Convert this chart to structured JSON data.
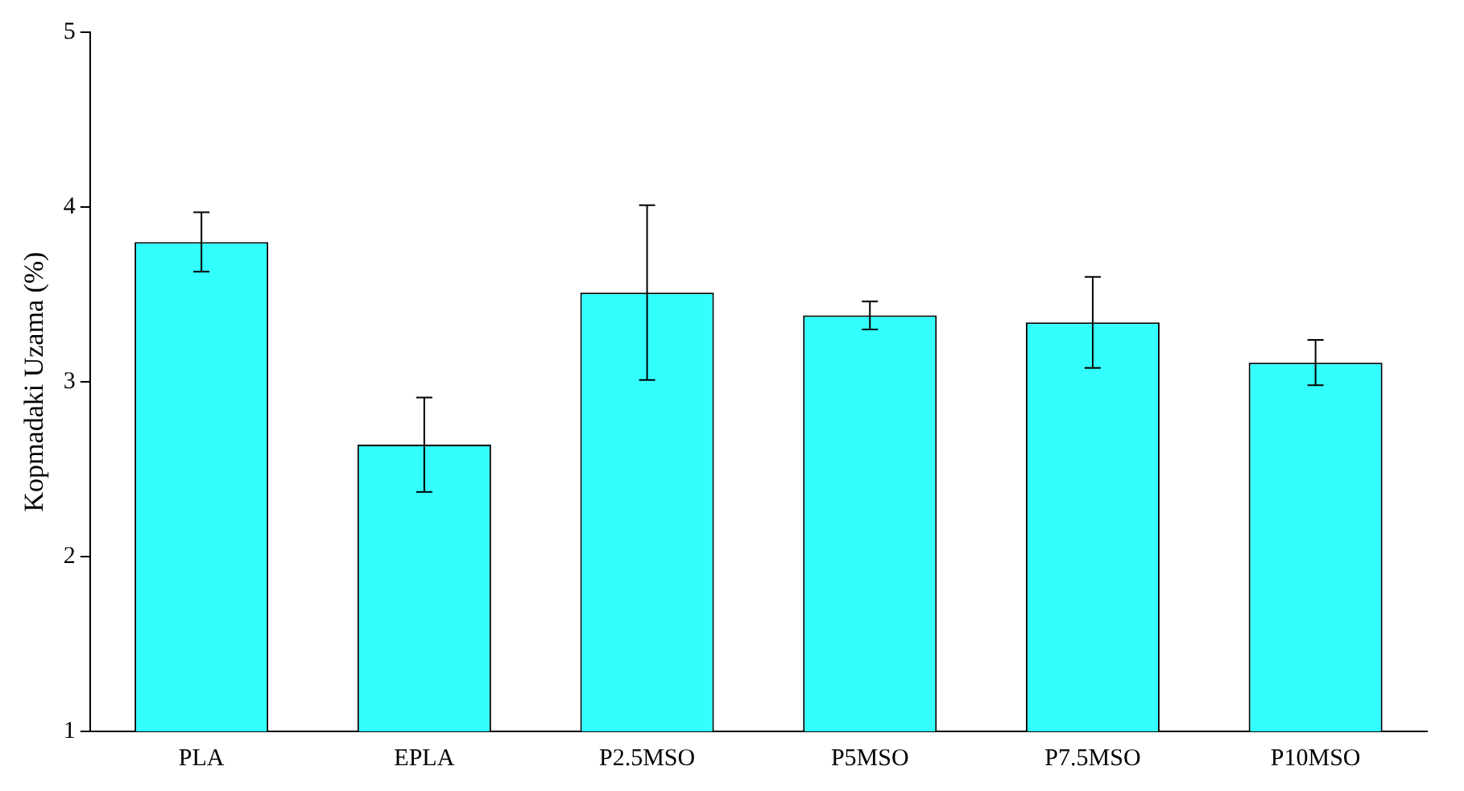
{
  "chart_data": {
    "type": "bar",
    "ylabel": "Kopmadaki Uzama (%)",
    "categories": [
      "PLA",
      "EPLA",
      "P2.5MSO",
      "P5MSO",
      "P7.5MSO",
      "P10MSO"
    ],
    "values": [
      3.8,
      2.64,
      3.51,
      3.38,
      3.34,
      3.11
    ],
    "errors": [
      0.17,
      0.27,
      0.5,
      0.08,
      0.26,
      0.13
    ],
    "color": "#33ffff",
    "ylim": [
      1,
      5
    ],
    "yticks": [
      1,
      2,
      3,
      4,
      5
    ],
    "grid": false,
    "legend": false
  }
}
